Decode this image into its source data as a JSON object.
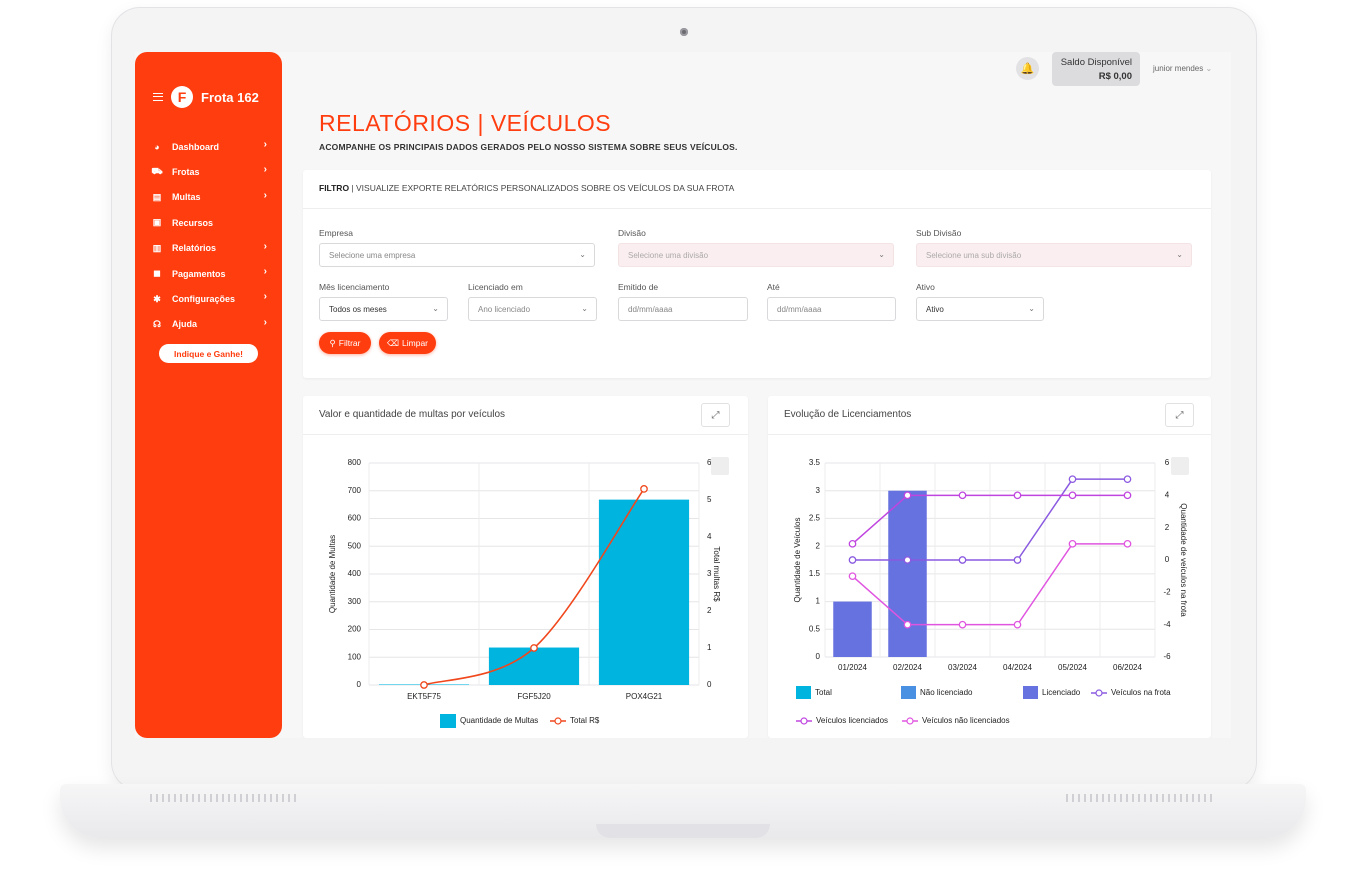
{
  "app": {
    "name": "Frota 162",
    "logo_letter": "F"
  },
  "sidebar": {
    "items": [
      {
        "label": "Dashboard",
        "icon": "pie-chart-icon",
        "glyph": "◕",
        "has_chevron": true
      },
      {
        "label": "Frotas",
        "icon": "car-icon",
        "glyph": "⛟",
        "has_chevron": true
      },
      {
        "label": "Multas",
        "icon": "document-icon",
        "glyph": "▤",
        "has_chevron": true
      },
      {
        "label": "Recursos",
        "icon": "inbox-icon",
        "glyph": "▣",
        "has_chevron": false
      },
      {
        "label": "Relatórios",
        "icon": "bar-chart-icon",
        "glyph": "▥",
        "has_chevron": true
      },
      {
        "label": "Pagamentos",
        "icon": "wallet-icon",
        "glyph": "◼",
        "has_chevron": true
      },
      {
        "label": "Configurações",
        "icon": "gear-icon",
        "glyph": "✱",
        "has_chevron": true
      },
      {
        "label": "Ajuda",
        "icon": "headset-icon",
        "glyph": "☊",
        "has_chevron": true
      }
    ],
    "cta_label": "Indique e Ganhe!"
  },
  "topbar": {
    "saldo_label": "Saldo Disponível",
    "saldo_value": "R$ 0,00",
    "user_name": "junior mendes"
  },
  "page": {
    "title_main": "RELATÓRIOS",
    "title_sep": "|",
    "title_sub": "VEÍCULOS",
    "subtitle": "ACOMPANHE OS PRINCIPAIS DADOS GERADOS PELO NOSSO SISTEMA SOBRE SEUS VEÍCULOS."
  },
  "filter": {
    "head_bold": "FILTRO",
    "head_rest": " | VISUALIZE EXPORTE RELATÓRICS PERSONALIZADOS SOBRE OS VEÍCULOS DA SUA FROTA",
    "empresa_label": "Empresa",
    "empresa_placeholder": "Selecione uma empresa",
    "divisao_label": "Divisão",
    "divisao_placeholder": "Selecione uma divisão",
    "subdivisao_label": "Sub Divisão",
    "subdivisao_placeholder": "Selecione uma sub divisão",
    "mes_label": "Mês licenciamento",
    "mes_value": "Todos os meses",
    "licenciado_label": "Licenciado em",
    "licenciado_placeholder": "Ano licenciado",
    "emitido_label": "Emitido de",
    "emitido_placeholder": "dd/mm/aaaa",
    "ate_label": "Até",
    "ate_placeholder": "dd/mm/aaaa",
    "ativo_label": "Ativo",
    "ativo_value": "Ativo",
    "filtrar_label": "Filtrar",
    "limpar_label": "Limpar"
  },
  "colors": {
    "brand": "#ff3d0f",
    "bar_cyan": "#00b4e0",
    "line_red": "#f0471c",
    "bar_blue": "#6672e0",
    "bar_lightblue": "#4a90e2",
    "line_purple": "#8a5ae0",
    "line_violet": "#c045e0",
    "line_pink": "#e055e0"
  },
  "chart_data": [
    {
      "type": "bar",
      "title": "Valor e quantidade de multas por veículos",
      "categories": [
        "EKT5F75",
        "FGF5J20",
        "POX4G21"
      ],
      "series": [
        {
          "name": "Quantidade de Multas",
          "type": "bar",
          "axis": "left",
          "values": [
            2,
            135,
            668
          ]
        },
        {
          "name": "Total R$",
          "type": "line",
          "axis": "right",
          "values": [
            0,
            1,
            5.3
          ]
        }
      ],
      "ylabel": "Quantidade de Multas",
      "y2label": "Total multas R$",
      "ylim": [
        0,
        800
      ],
      "y2lim": [
        0,
        6
      ],
      "yticks": [
        0,
        100,
        200,
        300,
        400,
        500,
        600,
        700,
        800
      ],
      "y2ticks": [
        0,
        1,
        2,
        3,
        4,
        5,
        6
      ],
      "legend": "bottom",
      "grid": true
    },
    {
      "type": "bar",
      "title": "Evolução de Licenciamentos",
      "categories": [
        "01/2024",
        "02/2024",
        "03/2024",
        "04/2024",
        "05/2024",
        "06/2024"
      ],
      "series": [
        {
          "name": "Total",
          "type": "bar",
          "axis": "left",
          "values": [
            0,
            0,
            0,
            0,
            0,
            0
          ]
        },
        {
          "name": "Não licenciado",
          "type": "bar",
          "axis": "left",
          "values": [
            0,
            0,
            0,
            0,
            0,
            0
          ]
        },
        {
          "name": "Licenciado",
          "type": "bar",
          "axis": "left",
          "values": [
            1,
            3,
            0,
            0,
            0,
            0
          ]
        },
        {
          "name": "Veículos na frota",
          "type": "line",
          "axis": "right",
          "values": [
            0,
            0,
            0,
            0,
            5,
            5
          ]
        },
        {
          "name": "Veículos licenciados",
          "type": "line",
          "axis": "right",
          "values": [
            1,
            4,
            4,
            4,
            4,
            4
          ]
        },
        {
          "name": "Veículos não licenciados",
          "type": "line",
          "axis": "right",
          "values": [
            -1,
            -4,
            -4,
            -4,
            1,
            1
          ]
        }
      ],
      "ylabel": "Quantidade de Veículos",
      "y2label": "Quantidade de veículos na frota",
      "ylim": [
        0,
        3.5
      ],
      "y2lim": [
        -6,
        6
      ],
      "yticks": [
        0,
        0.5,
        1,
        1.5,
        2,
        2.5,
        3,
        3.5
      ],
      "y2ticks": [
        -6,
        -4,
        -2,
        0,
        2,
        4,
        6
      ],
      "legend": "bottom",
      "grid": true
    }
  ]
}
